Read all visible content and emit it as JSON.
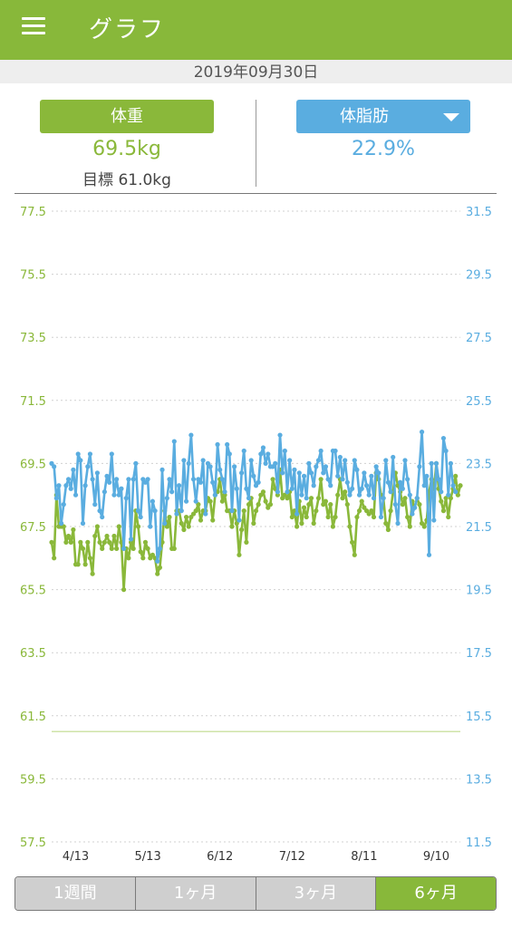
{
  "app": {
    "title": "グラフ"
  },
  "date": "2019年09月30日",
  "summary": {
    "weight_button": "体重",
    "weight_value": "69.5kg",
    "goal": "目標 61.0kg",
    "fat_button": "体脂肪",
    "fat_value": "22.9%"
  },
  "colors": {
    "weight": "#8ab83a",
    "fat": "#5aade0",
    "appbar": "#88b83a"
  },
  "range_tabs": [
    {
      "label": "1週間",
      "active": false
    },
    {
      "label": "1ヶ月",
      "active": false
    },
    {
      "label": "3ヶ月",
      "active": false
    },
    {
      "label": "6ヶ月",
      "active": true
    }
  ],
  "chart_data": {
    "type": "line",
    "x_tick_labels": [
      "4/13",
      "5/13",
      "6/12",
      "7/12",
      "8/11",
      "9/10"
    ],
    "x_tick_day_index": [
      10,
      40,
      70,
      100,
      130,
      160
    ],
    "left_axis": {
      "ticks": [
        "77.5",
        "75.5",
        "73.5",
        "71.5",
        "69.5",
        "67.5",
        "65.5",
        "63.5",
        "61.5",
        "59.5",
        "57.5"
      ],
      "range": [
        57.5,
        77.5
      ]
    },
    "right_axis": {
      "ticks": [
        "31.5",
        "29.5",
        "27.5",
        "25.5",
        "23.5",
        "21.5",
        "19.5",
        "17.5",
        "15.5",
        "13.5",
        "11.5"
      ],
      "range": [
        11.5,
        31.5
      ]
    },
    "goal_line": 61.0,
    "series": [
      {
        "axis": "left",
        "day_index": [
          0,
          1,
          2,
          3,
          4,
          5,
          6,
          7,
          8,
          9,
          10,
          11,
          12,
          13,
          14,
          15,
          16,
          17,
          18,
          19,
          20,
          21,
          22,
          23,
          24,
          25,
          26,
          27,
          28,
          29,
          30,
          31,
          32,
          33,
          34,
          35,
          36,
          37,
          38,
          39,
          40,
          41,
          42,
          43,
          44,
          45,
          46,
          47,
          48,
          49,
          50,
          51,
          52,
          53,
          54,
          55,
          56,
          57,
          58,
          59,
          60,
          61,
          62,
          63,
          64,
          65,
          66,
          67,
          68,
          69,
          70,
          71,
          72,
          73,
          74,
          75,
          76,
          77,
          78,
          79,
          80,
          81,
          82,
          83,
          84,
          85,
          86,
          87,
          88,
          89,
          90,
          91,
          92,
          93,
          94,
          95,
          96,
          97,
          98,
          99,
          100,
          101,
          102,
          103,
          104,
          105,
          106,
          107,
          108,
          109,
          110,
          111,
          112,
          113,
          114,
          115,
          116,
          117,
          118,
          119,
          120,
          121,
          122,
          123,
          124,
          125,
          126,
          127,
          128,
          129,
          130,
          131,
          132,
          133,
          134,
          135,
          136,
          137,
          138,
          139,
          140,
          141,
          142,
          143,
          144,
          145,
          146,
          147,
          148,
          149,
          150,
          151,
          152,
          153,
          154,
          155,
          156,
          157,
          158,
          159,
          160,
          161,
          162,
          163,
          164,
          165,
          166,
          167,
          168,
          169,
          170
        ],
        "values": [
          67.0,
          66.5,
          68.5,
          67.5,
          67.5,
          67.5,
          67.0,
          67.2,
          67.0,
          67.4,
          66.3,
          66.3,
          67.0,
          66.8,
          66.3,
          67.0,
          66.5,
          66.0,
          67.2,
          67.5,
          67.0,
          66.8,
          67.0,
          67.2,
          67.0,
          66.8,
          67.2,
          66.8,
          67.5,
          67.0,
          65.5,
          66.8,
          66.5,
          67.0,
          66.8,
          68.0,
          67.5,
          66.7,
          66.5,
          67.0,
          66.8,
          66.5,
          66.6,
          66.5,
          66.0,
          66.2,
          67.0,
          68.0,
          67.5,
          67.8,
          66.8,
          66.8,
          68.0,
          68.0,
          67.6,
          67.4,
          67.8,
          67.5,
          67.8,
          67.9,
          68.0,
          68.2,
          67.7,
          68.0,
          68.0,
          68.4,
          68.3,
          67.7,
          68.5,
          68.6,
          69.0,
          68.3,
          68.5,
          68.0,
          68.0,
          67.5,
          68.0,
          67.6,
          66.6,
          67.4,
          68.0,
          67.0,
          68.2,
          68.4,
          67.6,
          68.0,
          68.2,
          68.5,
          68.6,
          68.3,
          68.1,
          68.2,
          69.0,
          68.7,
          68.5,
          69.3,
          68.4,
          68.5,
          68.4,
          68.6,
          67.8,
          68.0,
          67.5,
          68.3,
          67.6,
          68.1,
          67.8,
          68.2,
          68.4,
          67.6,
          68.0,
          68.4,
          69.0,
          68.2,
          68.3,
          67.8,
          68.2,
          67.5,
          67.8,
          68.5,
          69.0,
          68.4,
          68.6,
          68.2,
          67.5,
          67.0,
          66.6,
          67.8,
          68.0,
          68.3,
          68.1,
          68.0,
          67.9,
          68.0,
          67.8,
          69.2,
          69.0,
          68.5,
          68.4,
          67.6,
          67.4,
          68.0,
          68.6,
          69.2,
          68.8,
          68.6,
          68.2,
          68.4,
          67.8,
          67.5,
          68.3,
          68.1,
          68.4,
          68.2,
          67.6,
          67.5,
          67.7,
          68.6,
          69.0,
          68.7,
          69.5,
          68.7,
          68.3,
          68.0,
          68.4,
          67.8,
          68.4,
          68.7,
          69.1,
          68.5,
          68.8
        ]
      },
      {
        "axis": "right",
        "day_index": [
          0,
          1,
          2,
          3,
          4,
          5,
          6,
          7,
          8,
          9,
          10,
          11,
          12,
          13,
          14,
          15,
          16,
          17,
          18,
          19,
          20,
          21,
          22,
          23,
          24,
          25,
          26,
          27,
          28,
          29,
          30,
          31,
          32,
          33,
          34,
          35,
          36,
          37,
          38,
          39,
          40,
          41,
          42,
          43,
          44,
          45,
          46,
          47,
          48,
          49,
          50,
          51,
          52,
          53,
          54,
          55,
          56,
          57,
          58,
          59,
          60,
          61,
          62,
          63,
          64,
          65,
          66,
          67,
          68,
          69,
          70,
          71,
          72,
          73,
          74,
          75,
          76,
          77,
          78,
          79,
          80,
          81,
          82,
          83,
          84,
          85,
          86,
          87,
          88,
          89,
          90,
          91,
          92,
          93,
          94,
          95,
          96,
          97,
          98,
          99,
          100,
          101,
          102,
          103,
          104,
          105,
          106,
          107,
          108,
          109,
          110,
          111,
          112,
          113,
          114,
          115,
          116,
          117,
          118,
          119,
          120,
          121,
          122,
          123,
          124,
          125,
          126,
          127,
          128,
          129,
          130,
          131,
          132,
          133,
          134,
          135,
          136,
          137,
          138,
          139,
          140,
          141,
          142,
          143,
          144,
          145,
          146,
          147,
          148,
          149,
          150,
          151,
          152,
          153,
          154,
          155,
          156,
          157,
          158,
          159,
          160,
          161,
          162,
          163,
          164,
          165,
          166,
          167,
          168,
          169,
          170
        ],
        "values": [
          23.5,
          23.4,
          22.4,
          22.8,
          21.6,
          22.2,
          22.8,
          23.0,
          22.7,
          23.3,
          22.5,
          23.8,
          23.6,
          21.6,
          22.8,
          23.4,
          23.8,
          23.0,
          22.2,
          23.2,
          22.0,
          21.8,
          22.6,
          23.1,
          22.9,
          23.8,
          22.5,
          23.0,
          22.5,
          22.7,
          20.8,
          22.4,
          23.0,
          21.1,
          23.0,
          23.5,
          22.0,
          21.8,
          23.0,
          22.9,
          23.0,
          21.5,
          22.3,
          22.0,
          20.4,
          20.8,
          23.3,
          21.6,
          22.4,
          23.0,
          22.6,
          24.2,
          21.9,
          22.8,
          22.0,
          23.6,
          22.3,
          23.5,
          24.4,
          23.0,
          22.3,
          23.0,
          22.9,
          23.6,
          21.9,
          23.5,
          23.4,
          22.9,
          22.5,
          24.1,
          23.3,
          23.0,
          22.6,
          24.1,
          23.8,
          22.0,
          23.4,
          22.7,
          21.7,
          23.2,
          23.9,
          22.7,
          22.4,
          23.6,
          23.1,
          22.8,
          22.9,
          23.8,
          24.0,
          23.5,
          23.8,
          23.4,
          23.4,
          23.5,
          22.6,
          24.4,
          23.2,
          23.9,
          22.6,
          23.6,
          22.7,
          23.3,
          21.9,
          23.2,
          22.5,
          23.1,
          22.4,
          23.5,
          23.2,
          22.8,
          23.4,
          23.6,
          23.9,
          23.2,
          23.4,
          23.0,
          22.8,
          23.9,
          23.9,
          23.1,
          23.7,
          23.0,
          23.6,
          22.9,
          22.5,
          22.7,
          23.6,
          23.3,
          22.5,
          22.7,
          23.2,
          22.8,
          22.5,
          23.1,
          22.4,
          23.4,
          23.2,
          21.8,
          22.4,
          23.6,
          22.9,
          22.6,
          23.7,
          22.2,
          21.6,
          22.9,
          22.7,
          23.6,
          23.0,
          22.5,
          21.9,
          22.1,
          22.4,
          23.4,
          24.5,
          22.8,
          23.1,
          20.6,
          23.5,
          21.7,
          23.5,
          23.0,
          22.6,
          24.3,
          23.9,
          22.5,
          23.5,
          22.8,
          22.6
        ]
      }
    ]
  }
}
